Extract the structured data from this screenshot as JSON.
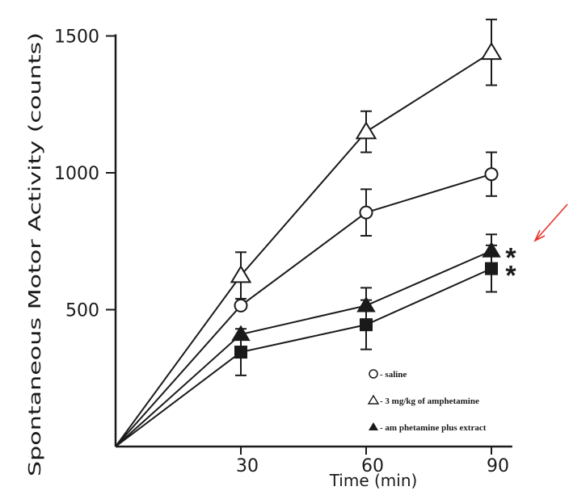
{
  "chart_data": {
    "type": "line",
    "ylabel": "Spontaneous Motor Activity (counts)",
    "xlabel": "Time (min)",
    "x": [
      0,
      30,
      60,
      90
    ],
    "x_ticks": [
      30,
      60,
      90
    ],
    "y_ticks": [
      500,
      1000,
      1500
    ],
    "xlim": [
      0,
      95
    ],
    "ylim": [
      0,
      1500
    ],
    "series": [
      {
        "name": "saline",
        "legend_label": "saline",
        "marker": "open-circle",
        "values": [
          0,
          515,
          855,
          995
        ],
        "errors": [
          0,
          null,
          85,
          80
        ]
      },
      {
        "name": "3 mg/kg of amphetamine",
        "legend_label": "3 mg/kg of amphetamine",
        "marker": "open-triangle",
        "values": [
          0,
          625,
          1150,
          1440
        ],
        "errors": [
          0,
          85,
          75,
          120
        ]
      },
      {
        "name": "am phetamine plus extract",
        "legend_label": "am phetamine plus extract",
        "marker": "filled-triangle",
        "values": [
          0,
          410,
          515,
          715
        ],
        "errors": [
          0,
          null,
          65,
          60
        ]
      },
      {
        "name": "",
        "marker": "filled-square",
        "values": [
          0,
          345,
          445,
          650
        ],
        "errors": [
          0,
          85,
          90,
          85
        ]
      }
    ],
    "annotations": [
      {
        "text": "*",
        "series": 2,
        "x": 90
      },
      {
        "text": "*",
        "series": 3,
        "x": 90
      }
    ],
    "legend_position": "bottom-right",
    "arrow_color": "#e8332c"
  }
}
